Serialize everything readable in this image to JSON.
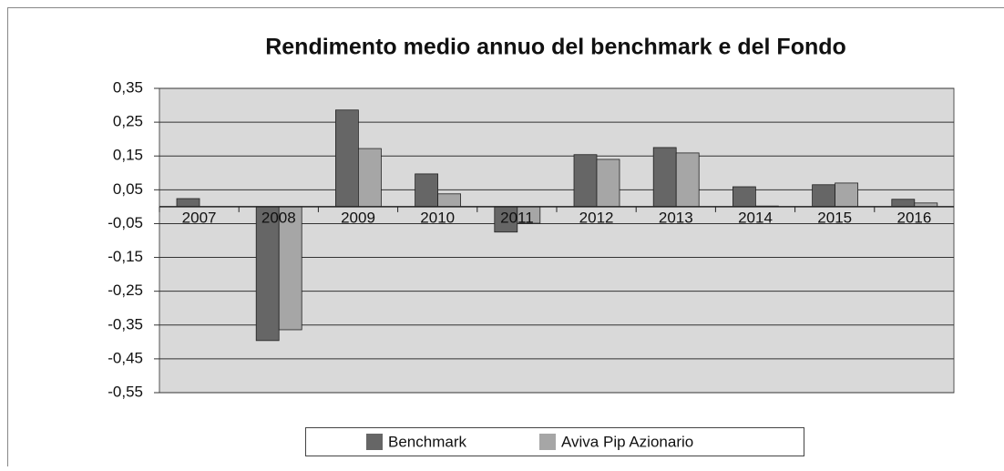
{
  "chart_data": {
    "type": "bar",
    "title": "Rendimento medio annuo del benchmark e del Fondo",
    "categories": [
      "2007",
      "2008",
      "2009",
      "2010",
      "2011",
      "2012",
      "2013",
      "2014",
      "2015",
      "2016"
    ],
    "series": [
      {
        "name": "Benchmark",
        "color": "#666666",
        "values": [
          0.024,
          -0.396,
          0.286,
          0.097,
          -0.075,
          0.154,
          0.175,
          0.059,
          0.065,
          0.022
        ]
      },
      {
        "name": "Aviva Pip Azionario",
        "color": "#a6a6a6",
        "values": [
          0,
          -0.364,
          0.172,
          0.038,
          -0.049,
          0.14,
          0.159,
          0.002,
          0.07,
          0.011
        ]
      }
    ],
    "ylim": [
      -0.55,
      0.35
    ],
    "yticks": [
      {
        "value": 0.35,
        "label": "0,35"
      },
      {
        "value": 0.25,
        "label": "0,25"
      },
      {
        "value": 0.15,
        "label": "0,15"
      },
      {
        "value": 0.05,
        "label": "0,05"
      },
      {
        "value": -0.05,
        "label": "-0,05"
      },
      {
        "value": -0.15,
        "label": "-0,15"
      },
      {
        "value": -0.25,
        "label": "-0,25"
      },
      {
        "value": -0.35,
        "label": "-0,35"
      },
      {
        "value": -0.45,
        "label": "-0,45"
      },
      {
        "value": -0.55,
        "label": "-0,55"
      }
    ],
    "grid": true,
    "legend": "bottom"
  }
}
